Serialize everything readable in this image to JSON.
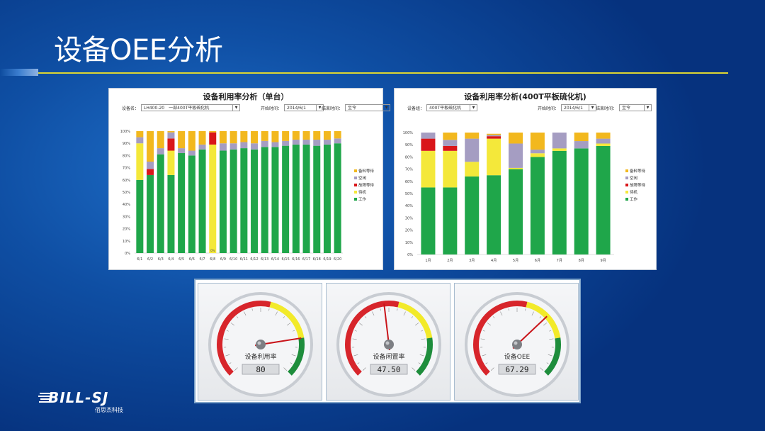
{
  "slide_title": "设备OEE分析",
  "left_panel": {
    "title": "设备利用率分析（单台）",
    "device_label": "设备名：",
    "device_value": "LH400-20　一部400T平板硫化机",
    "start_label": "开始时间：",
    "start_value": "2014/6/1",
    "end_label": "结束时间：",
    "end_value": "至今"
  },
  "right_panel": {
    "title": "设备利用率分析(400T平板硫化机)",
    "group_label": "设备组：",
    "group_value": "400T平板硫化机",
    "start_label": "开始时间：",
    "start_value": "2014/6/1",
    "end_label": "结束时间：",
    "end_value": "至今"
  },
  "colors": {
    "work": "#1fa64a",
    "standby": "#f4e83a",
    "fault": "#d9161a",
    "idle": "#a59dc2",
    "material": "#f2b81e"
  },
  "chart_data": [
    {
      "type": "bar",
      "stacked": true,
      "title": "设备利用率分析（单台）",
      "yticks": [
        "0%",
        "10%",
        "20%",
        "30%",
        "40%",
        "50%",
        "60%",
        "70%",
        "80%",
        "90%",
        "100%"
      ],
      "ylim": [
        0,
        100
      ],
      "categories": [
        "6/1",
        "6/2",
        "6/3",
        "6/4",
        "6/5",
        "6/6",
        "6/7",
        "6/8",
        "6/9",
        "6/10",
        "6/11",
        "6/12",
        "6/13",
        "6/14",
        "6/15",
        "6/16",
        "6/17",
        "6/18",
        "6/19",
        "6/20"
      ],
      "legend": [
        "备料等待",
        "空闲",
        "故障等待",
        "待机",
        "工作"
      ],
      "legend_position": "right",
      "series": [
        {
          "name": "工作",
          "key": "work",
          "values": [
            60,
            64,
            81,
            64,
            82,
            80,
            85,
            0,
            84,
            85,
            86,
            85,
            87,
            87,
            88,
            89,
            89,
            88,
            89,
            90
          ]
        },
        {
          "name": "待机",
          "key": "standby",
          "values": [
            30,
            0,
            0,
            20,
            0,
            0,
            0,
            89,
            0,
            0,
            0,
            0,
            0,
            0,
            0,
            0,
            0,
            0,
            0,
            0
          ]
        },
        {
          "name": "故障等待",
          "key": "fault",
          "values": [
            0,
            5,
            0,
            10,
            0,
            0,
            0,
            10,
            0,
            0,
            0,
            0,
            0,
            0,
            0,
            0,
            0,
            0,
            0,
            0
          ]
        },
        {
          "name": "空闲",
          "key": "idle",
          "values": [
            5,
            6,
            5,
            5,
            4,
            4,
            4,
            0,
            6,
            5,
            5,
            5,
            5,
            4,
            4,
            4,
            4,
            5,
            4,
            4
          ]
        },
        {
          "name": "备料等待",
          "key": "material",
          "values": [
            5,
            25,
            14,
            1,
            14,
            16,
            11,
            1,
            10,
            10,
            9,
            10,
            8,
            9,
            8,
            7,
            7,
            7,
            7,
            6
          ]
        }
      ],
      "zero_label": "0%"
    },
    {
      "type": "bar",
      "stacked": true,
      "title": "设备利用率分析(400T平板硫化机)",
      "yticks": [
        "0%",
        "10%",
        "20%",
        "30%",
        "40%",
        "50%",
        "60%",
        "70%",
        "80%",
        "90%",
        "100%"
      ],
      "ylim": [
        0,
        100
      ],
      "categories": [
        "1月",
        "2月",
        "3月",
        "4月",
        "5月",
        "6月",
        "7月",
        "8月",
        "9月"
      ],
      "legend": [
        "备料等待",
        "空闲",
        "故障等待",
        "待机",
        "工作"
      ],
      "legend_position": "right",
      "series": [
        {
          "name": "工作",
          "key": "work",
          "values": [
            55,
            55,
            64,
            65,
            70,
            80,
            85,
            87,
            89
          ]
        },
        {
          "name": "待机",
          "key": "standby",
          "values": [
            30,
            30,
            12,
            30,
            1,
            3,
            2,
            0,
            2
          ]
        },
        {
          "name": "故障等待",
          "key": "fault",
          "values": [
            10,
            4,
            0,
            2,
            0,
            0,
            0,
            0,
            0
          ]
        },
        {
          "name": "空闲",
          "key": "idle",
          "values": [
            5,
            5,
            19,
            1,
            20,
            3,
            13,
            6,
            4
          ]
        },
        {
          "name": "备料等待",
          "key": "material",
          "values": [
            0,
            6,
            5,
            1,
            9,
            14,
            0,
            7,
            5
          ]
        }
      ]
    }
  ],
  "gauges": [
    {
      "label": "设备利用率",
      "value": "80",
      "needle_pct": 0.8
    },
    {
      "label": "设备闲置率",
      "value": "47.50",
      "needle_pct": 0.475
    },
    {
      "label": "设备OEE",
      "value": "67.29",
      "needle_pct": 0.673
    }
  ],
  "logo": {
    "text": "BILL-SJ",
    "sub": "佰思杰科技"
  }
}
